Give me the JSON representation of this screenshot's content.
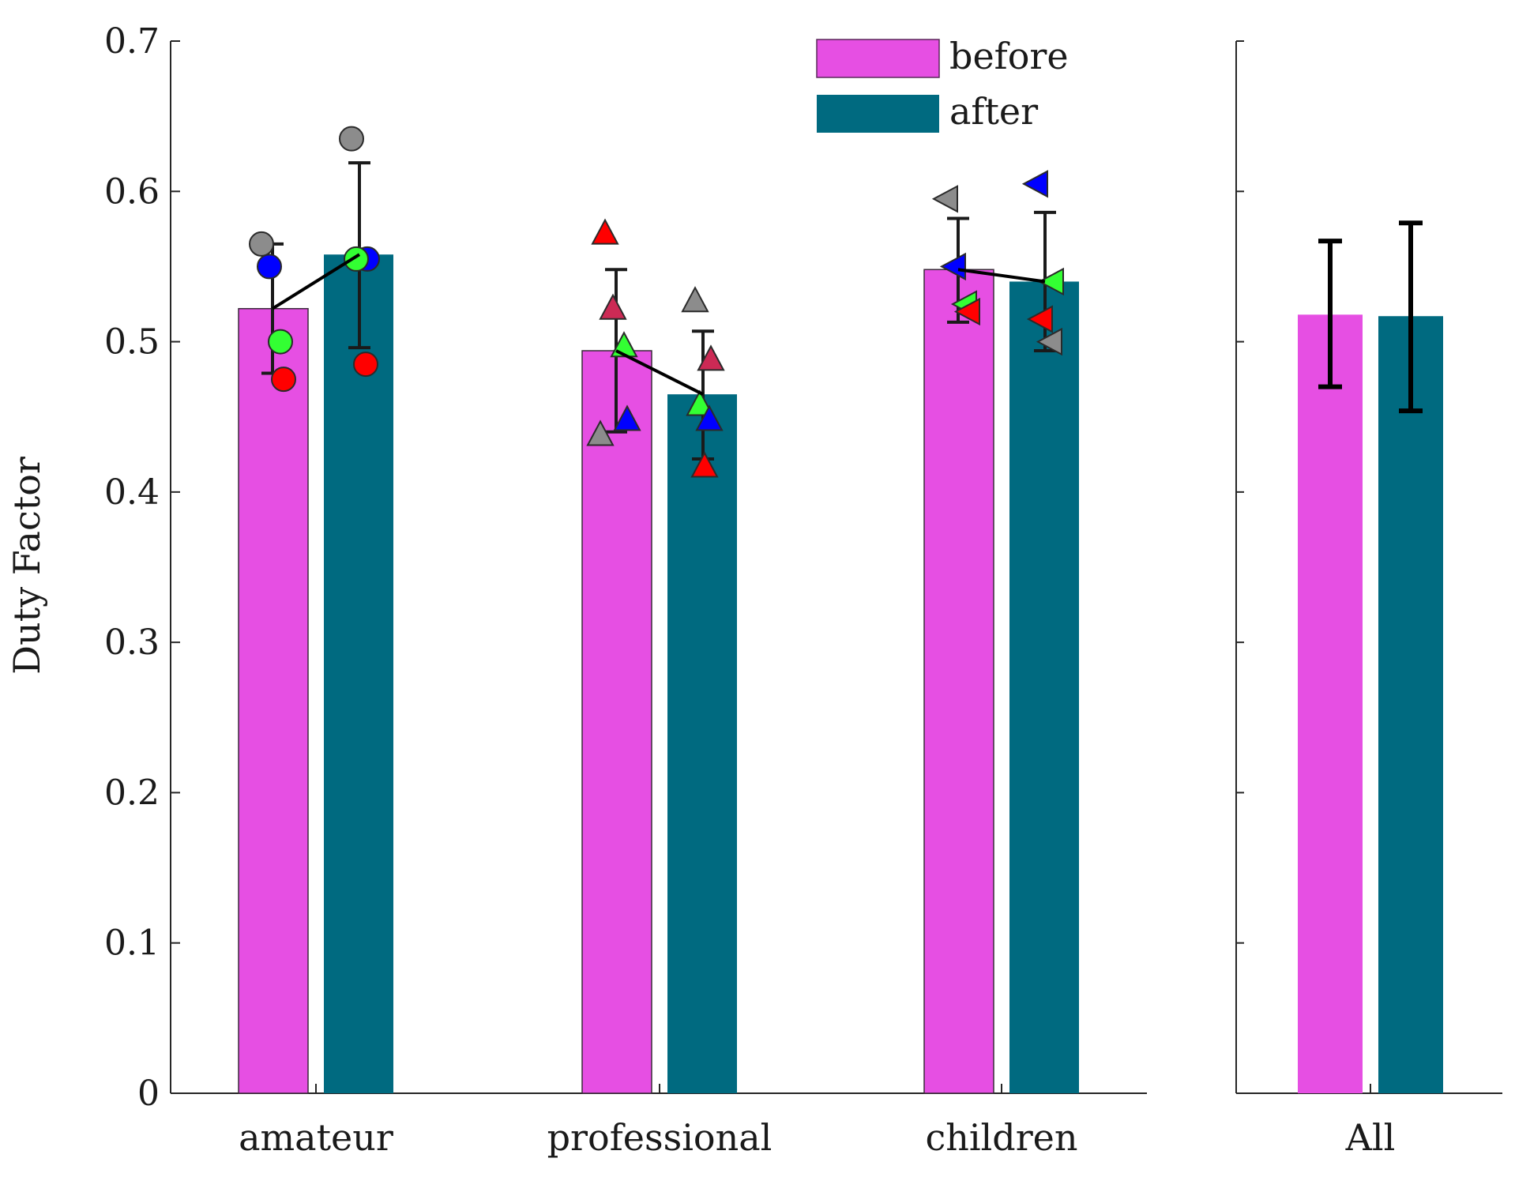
{
  "chart_data": {
    "type": "bar",
    "ylabel": "Duty Factor",
    "ylim": [
      0,
      0.7
    ],
    "yticks": [
      0,
      0.1,
      0.2,
      0.3,
      0.4,
      0.5,
      0.6,
      0.7
    ],
    "ytick_labels": [
      "0",
      "0.1",
      "0.2",
      "0.3",
      "0.4",
      "0.5",
      "0.6",
      "0.7"
    ],
    "legend": {
      "position": "top-center",
      "entries": [
        {
          "label": "before",
          "color": "#e64fe3"
        },
        {
          "label": "after",
          "color": "#006a80"
        }
      ]
    },
    "colors": {
      "before": "#e64fe3",
      "after": "#006a80"
    },
    "panels": [
      {
        "name": "groups",
        "categories": [
          {
            "label": "amateur",
            "marker": "circle",
            "before": {
              "value": 0.522,
              "err_low": 0.479,
              "err_high": 0.565
            },
            "after": {
              "value": 0.558,
              "err_low": 0.496,
              "err_high": 0.619
            },
            "points_before": [
              {
                "y": 0.565,
                "color": "#8c8c8c"
              },
              {
                "y": 0.55,
                "color": "#0000ff"
              },
              {
                "y": 0.5,
                "color": "#33ff33"
              },
              {
                "y": 0.475,
                "color": "#ff0000"
              }
            ],
            "points_after": [
              {
                "y": 0.635,
                "color": "#8c8c8c"
              },
              {
                "y": 0.555,
                "color": "#0000ff"
              },
              {
                "y": 0.555,
                "color": "#33ff33"
              },
              {
                "y": 0.485,
                "color": "#ff0000"
              }
            ]
          },
          {
            "label": "professional",
            "marker": "triangle-up",
            "before": {
              "value": 0.494,
              "err_low": 0.44,
              "err_high": 0.548
            },
            "after": {
              "value": 0.465,
              "err_low": 0.422,
              "err_high": 0.507
            },
            "points_before": [
              {
                "y": 0.572,
                "color": "#ff0000"
              },
              {
                "y": 0.522,
                "color": "#cc2a55"
              },
              {
                "y": 0.497,
                "color": "#33ff33"
              },
              {
                "y": 0.448,
                "color": "#0000ff"
              },
              {
                "y": 0.438,
                "color": "#8c8c8c"
              }
            ],
            "points_after": [
              {
                "y": 0.527,
                "color": "#8c8c8c"
              },
              {
                "y": 0.488,
                "color": "#cc2a55"
              },
              {
                "y": 0.458,
                "color": "#33ff33"
              },
              {
                "y": 0.448,
                "color": "#0000ff"
              },
              {
                "y": 0.417,
                "color": "#ff0000"
              }
            ]
          },
          {
            "label": "children",
            "marker": "triangle-left",
            "before": {
              "value": 0.548,
              "err_low": 0.513,
              "err_high": 0.582
            },
            "after": {
              "value": 0.54,
              "err_low": 0.494,
              "err_high": 0.586
            },
            "points_before": [
              {
                "y": 0.595,
                "color": "#8c8c8c"
              },
              {
                "y": 0.55,
                "color": "#0000ff"
              },
              {
                "y": 0.525,
                "color": "#33ff33"
              },
              {
                "y": 0.52,
                "color": "#ff0000"
              }
            ],
            "points_after": [
              {
                "y": 0.605,
                "color": "#0000ff"
              },
              {
                "y": 0.54,
                "color": "#33ff33"
              },
              {
                "y": 0.515,
                "color": "#ff0000"
              },
              {
                "y": 0.5,
                "color": "#8c8c8c"
              }
            ]
          }
        ]
      },
      {
        "name": "overall",
        "categories": [
          {
            "label": "All",
            "before": {
              "value": 0.518,
              "err_low": 0.47,
              "err_high": 0.567
            },
            "after": {
              "value": 0.517,
              "err_low": 0.454,
              "err_high": 0.579
            }
          }
        ]
      }
    ]
  }
}
